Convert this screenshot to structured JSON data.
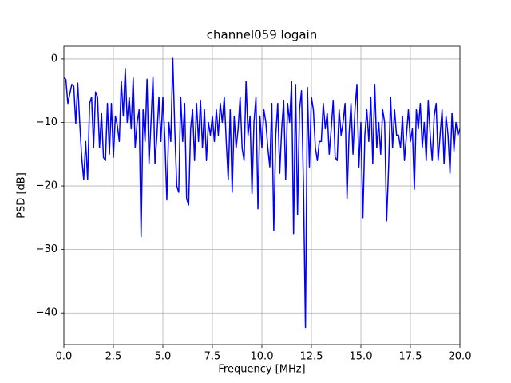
{
  "chart_data": {
    "type": "line",
    "title": "channel059 logain",
    "x_label": "Frequency [MHz]",
    "y_label": "PSD [dB]",
    "x": [
      0,
      0.1,
      0.2,
      0.3,
      0.4,
      0.5,
      0.6,
      0.7,
      0.8,
      0.9,
      1,
      1.1,
      1.2,
      1.3,
      1.4,
      1.5,
      1.6,
      1.7,
      1.8,
      1.9,
      2,
      2.1,
      2.2,
      2.3,
      2.4,
      2.5,
      2.6,
      2.7,
      2.8,
      2.9,
      3,
      3.1,
      3.2,
      3.3,
      3.4,
      3.5,
      3.6,
      3.7,
      3.8,
      3.9,
      4,
      4.1,
      4.2,
      4.3,
      4.4,
      4.5,
      4.6,
      4.7,
      4.8,
      4.9,
      5,
      5.1,
      5.2,
      5.3,
      5.4,
      5.5,
      5.6,
      5.7,
      5.8,
      5.9,
      6,
      6.1,
      6.2,
      6.3,
      6.4,
      6.5,
      6.6,
      6.7,
      6.8,
      6.9,
      7,
      7.1,
      7.2,
      7.3,
      7.4,
      7.5,
      7.6,
      7.7,
      7.8,
      7.9,
      8,
      8.1,
      8.2,
      8.3,
      8.4,
      8.5,
      8.6,
      8.7,
      8.8,
      8.9,
      9,
      9.1,
      9.2,
      9.3,
      9.4,
      9.5,
      9.6,
      9.7,
      9.8,
      9.9,
      10,
      10.1,
      10.2,
      10.3,
      10.4,
      10.5,
      10.6,
      10.7,
      10.8,
      10.9,
      11,
      11.1,
      11.2,
      11.3,
      11.4,
      11.5,
      11.6,
      11.7,
      11.8,
      11.9,
      12,
      12.1,
      12.2,
      12.3,
      12.4,
      12.5,
      12.6,
      12.7,
      12.8,
      12.9,
      13,
      13.1,
      13.2,
      13.3,
      13.4,
      13.5,
      13.6,
      13.7,
      13.8,
      13.9,
      14,
      14.1,
      14.2,
      14.3,
      14.4,
      14.5,
      14.6,
      14.7,
      14.8,
      14.9,
      15,
      15.1,
      15.2,
      15.3,
      15.4,
      15.5,
      15.6,
      15.7,
      15.8,
      15.9,
      16,
      16.1,
      16.2,
      16.3,
      16.4,
      16.5,
      16.6,
      16.7,
      16.8,
      16.9,
      17,
      17.1,
      17.2,
      17.3,
      17.4,
      17.5,
      17.6,
      17.7,
      17.8,
      17.9,
      18,
      18.1,
      18.2,
      18.3,
      18.4,
      18.5,
      18.6,
      18.7,
      18.8,
      18.9,
      19,
      19.1,
      19.2,
      19.3,
      19.4,
      19.5,
      19.6,
      19.7,
      19.8,
      19.9,
      20
    ],
    "series": [
      {
        "name": "channel059",
        "color": "#0000ff",
        "values": [
          -3,
          -3.2,
          -7,
          -5.5,
          -4,
          -4.3,
          -10.2,
          -3.8,
          -10,
          -15.5,
          -19,
          -13,
          -19,
          -7,
          -6,
          -14,
          -5.2,
          -6,
          -14,
          -8.5,
          -15.5,
          -16,
          -7,
          -15,
          -7,
          -15.5,
          -9,
          -10.5,
          -13,
          -3.5,
          -9,
          -1.5,
          -10,
          -6,
          -11,
          -3,
          -14,
          -10,
          -8,
          -28,
          -8,
          -13,
          -3.2,
          -16.5,
          -10,
          -2.8,
          -16.5,
          -12,
          -6,
          -13,
          -6,
          -12.5,
          -22.2,
          -10,
          -13,
          0.1,
          -11,
          -20,
          -21,
          -6,
          -13,
          -7,
          -22,
          -23,
          -11,
          -8,
          -16,
          -7,
          -13,
          -6.5,
          -14,
          -8,
          -16,
          -10,
          -12,
          -9,
          -13,
          -8,
          -12,
          -7,
          -10,
          -6,
          -13,
          -19,
          -8,
          -21,
          -9,
          -14,
          -11,
          -6,
          -14,
          -16,
          -3.5,
          -12,
          -9,
          -21.2,
          -10,
          -6,
          -23.6,
          -9,
          -14,
          -8,
          -10,
          -14,
          -17,
          -7,
          -27,
          -12,
          -7,
          -18,
          -11,
          -6.5,
          -19,
          -7,
          -10,
          -3.5,
          -27.5,
          -4,
          -24.5,
          -8,
          -5,
          -20,
          -42.3,
          -4.5,
          -17,
          -6,
          -8,
          -14,
          -16,
          -13,
          -13,
          -7,
          -11,
          -8.5,
          -15,
          -11,
          -6.5,
          -15.5,
          -16,
          -8,
          -12,
          -10,
          -7,
          -22,
          -12,
          -7,
          -15,
          -8,
          -4,
          -17,
          -10,
          -25,
          -12,
          -8,
          -13,
          -6,
          -16.5,
          -4,
          -14,
          -10,
          -15,
          -8,
          -10,
          -25.5,
          -17,
          -6,
          -14,
          -8,
          -12,
          -12,
          -14,
          -9,
          -16,
          -12,
          -8,
          -13,
          -11,
          -20.5,
          -8,
          -11,
          -7,
          -14,
          -10,
          -16,
          -6.5,
          -12,
          -16,
          -9,
          -7,
          -16,
          -12,
          -8,
          -16.5,
          -9,
          -12,
          -18,
          -8.5,
          -14.5,
          -10,
          -12,
          -11
        ]
      }
    ],
    "xlim": [
      0,
      20
    ],
    "xticks": [
      {
        "value": 0,
        "label": "0.0"
      },
      {
        "value": 2.5,
        "label": "2.5"
      },
      {
        "value": 5,
        "label": "5.0"
      },
      {
        "value": 7.5,
        "label": "7.5"
      },
      {
        "value": 10,
        "label": "10.0"
      },
      {
        "value": 12.5,
        "label": "12.5"
      },
      {
        "value": 15,
        "label": "15.0"
      },
      {
        "value": 17.5,
        "label": "17.5"
      },
      {
        "value": 20,
        "label": "20.0"
      }
    ],
    "ylim": [
      -45,
      2
    ],
    "yticks": [
      {
        "value": -40,
        "label": "−40"
      },
      {
        "value": -30,
        "label": "−30"
      },
      {
        "value": -20,
        "label": "−20"
      },
      {
        "value": -10,
        "label": "−10"
      },
      0
    ],
    "grid": true
  }
}
